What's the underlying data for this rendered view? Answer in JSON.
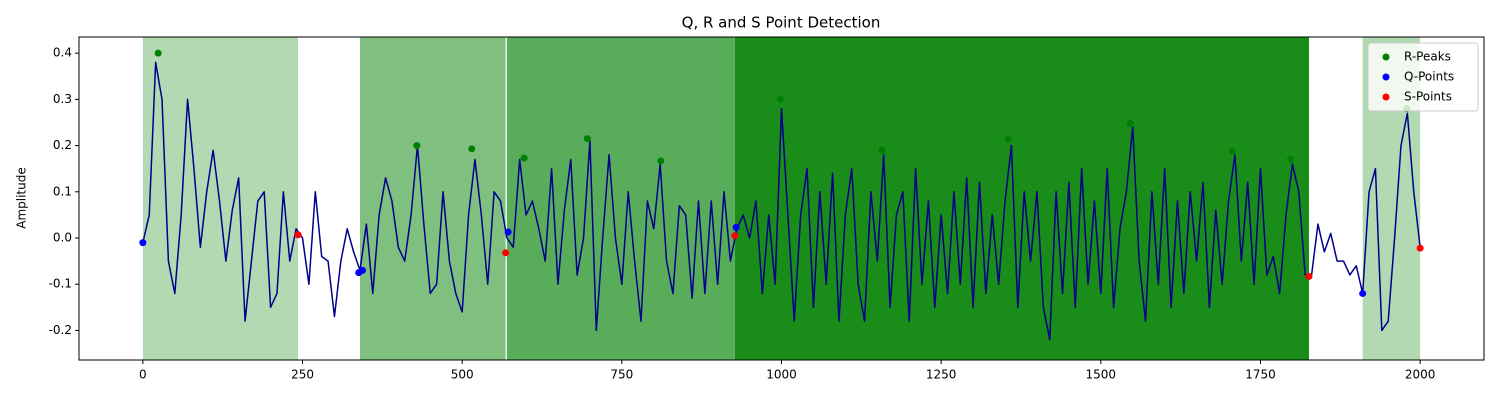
{
  "chart_data": {
    "type": "line",
    "title": "Q, R and S Point Detection",
    "y_label": "Amplitude",
    "xlim": [
      -100,
      2100
    ],
    "ylim": [
      -0.264,
      0.435
    ],
    "xticks": [
      0,
      250,
      500,
      750,
      1000,
      1250,
      1500,
      1750,
      2000
    ],
    "yticks": [
      -0.2,
      -0.1,
      {
        "value": 0,
        "label": "0.0"
      },
      0.1,
      0.2,
      0.3,
      0.4
    ],
    "grid": false,
    "legend": "upper right",
    "regions": [
      {
        "start": 0,
        "end": 243,
        "color": "green",
        "alpha": 0.3
      },
      {
        "start": 340,
        "end": 568,
        "color": "green",
        "alpha": 0.5
      },
      {
        "start": 570,
        "end": 927,
        "color": "green",
        "alpha": 0.65
      },
      {
        "start": 927,
        "end": 1826,
        "color": "green",
        "alpha": 0.9
      },
      {
        "start": 1910,
        "end": 2000,
        "color": "green",
        "alpha": 0.3
      }
    ],
    "series": [
      {
        "color": "#00008b",
        "x": [
          0,
          10,
          20,
          30,
          40,
          50,
          60,
          70,
          80,
          90,
          100,
          110,
          120,
          130,
          140,
          150,
          160,
          170,
          180,
          190,
          200,
          210,
          220,
          230,
          240,
          250,
          260,
          270,
          280,
          290,
          300,
          310,
          320,
          330,
          340,
          350,
          360,
          370,
          380,
          390,
          400,
          410,
          420,
          430,
          440,
          450,
          460,
          470,
          480,
          490,
          500,
          510,
          520,
          530,
          540,
          550,
          560,
          570,
          580,
          590,
          600,
          610,
          620,
          630,
          640,
          650,
          660,
          670,
          680,
          690,
          700,
          710,
          720,
          730,
          740,
          750,
          760,
          770,
          780,
          790,
          800,
          810,
          820,
          830,
          840,
          850,
          860,
          870,
          880,
          890,
          900,
          910,
          920,
          930,
          940,
          950,
          960,
          970,
          980,
          990,
          1000,
          1010,
          1020,
          1030,
          1040,
          1050,
          1060,
          1070,
          1080,
          1090,
          1100,
          1110,
          1120,
          1130,
          1140,
          1150,
          1160,
          1170,
          1180,
          1190,
          1200,
          1210,
          1220,
          1230,
          1240,
          1250,
          1260,
          1270,
          1280,
          1290,
          1300,
          1310,
          1320,
          1330,
          1340,
          1350,
          1360,
          1370,
          1380,
          1390,
          1400,
          1410,
          1420,
          1430,
          1440,
          1450,
          1460,
          1470,
          1480,
          1490,
          1500,
          1510,
          1520,
          1530,
          1540,
          1550,
          1560,
          1570,
          1580,
          1590,
          1600,
          1610,
          1620,
          1630,
          1640,
          1650,
          1660,
          1670,
          1680,
          1690,
          1700,
          1710,
          1720,
          1730,
          1740,
          1750,
          1760,
          1770,
          1780,
          1790,
          1800,
          1810,
          1820,
          1830,
          1840,
          1850,
          1860,
          1870,
          1880,
          1890,
          1900,
          1910,
          1920,
          1930,
          1940,
          1950,
          1960,
          1970,
          1980,
          1990,
          2000
        ],
        "values": [
          -0.01,
          0.05,
          0.38,
          0.3,
          -0.05,
          -0.12,
          0.05,
          0.3,
          0.15,
          -0.02,
          0.1,
          0.19,
          0.08,
          -0.05,
          0.06,
          0.13,
          -0.18,
          -0.05,
          0.08,
          0.1,
          -0.15,
          -0.12,
          0.1,
          -0.05,
          0.02,
          0.0,
          -0.1,
          0.1,
          -0.04,
          -0.05,
          -0.17,
          -0.05,
          0.02,
          -0.03,
          -0.07,
          0.03,
          -0.12,
          0.05,
          0.13,
          0.08,
          -0.02,
          -0.05,
          0.05,
          0.2,
          0.03,
          -0.12,
          -0.1,
          0.1,
          -0.05,
          -0.12,
          -0.16,
          0.05,
          0.17,
          0.05,
          -0.1,
          0.1,
          0.08,
          0.0,
          -0.02,
          0.17,
          0.05,
          0.08,
          0.02,
          -0.05,
          0.15,
          -0.1,
          0.06,
          0.17,
          -0.08,
          0.0,
          0.21,
          -0.2,
          0.0,
          0.18,
          0.0,
          -0.1,
          0.1,
          -0.05,
          -0.18,
          0.08,
          0.02,
          0.16,
          -0.05,
          -0.12,
          0.07,
          0.05,
          -0.13,
          0.08,
          -0.12,
          0.08,
          -0.1,
          0.1,
          -0.05,
          0.02,
          0.05,
          0.0,
          0.08,
          -0.12,
          0.05,
          -0.1,
          0.28,
          0.05,
          -0.18,
          0.05,
          0.15,
          -0.15,
          0.1,
          -0.1,
          0.14,
          -0.18,
          0.05,
          0.15,
          -0.1,
          -0.18,
          0.1,
          -0.05,
          0.18,
          -0.15,
          0.05,
          0.1,
          -0.18,
          0.15,
          -0.1,
          0.08,
          -0.15,
          0.05,
          -0.12,
          0.1,
          -0.1,
          0.13,
          -0.15,
          0.12,
          -0.12,
          0.05,
          -0.1,
          0.08,
          0.2,
          -0.15,
          0.1,
          -0.05,
          0.1,
          -0.15,
          -0.22,
          0.1,
          -0.12,
          0.12,
          -0.15,
          0.15,
          -0.1,
          0.08,
          -0.12,
          0.15,
          -0.15,
          0.02,
          0.1,
          0.24,
          -0.05,
          -0.18,
          0.1,
          -0.1,
          0.15,
          -0.15,
          0.08,
          -0.12,
          0.1,
          -0.05,
          0.12,
          -0.15,
          0.06,
          -0.1,
          0.08,
          0.18,
          -0.05,
          0.12,
          -0.1,
          0.15,
          -0.08,
          -0.04,
          -0.12,
          0.05,
          0.16,
          0.1,
          -0.08,
          -0.08,
          0.03,
          -0.03,
          0.01,
          -0.05,
          -0.05,
          -0.08,
          -0.06,
          -0.12,
          0.1,
          0.15,
          -0.2,
          -0.18,
          0.0,
          0.2,
          0.27,
          0.1,
          -0.02
        ]
      },
      {
        "name": "R-Peaks",
        "color": "green",
        "marker": true,
        "x": [
          24,
          429,
          515,
          597,
          696,
          811,
          998,
          1157,
          1355,
          1546,
          1706,
          1797,
          1979
        ],
        "values": [
          0.4,
          0.2,
          0.193,
          0.173,
          0.215,
          0.167,
          0.3,
          0.19,
          0.213,
          0.248,
          0.187,
          0.17,
          0.28
        ]
      },
      {
        "name": "Q-Points",
        "color": "blue",
        "marker": true,
        "x": [
          0,
          338,
          344,
          572,
          929,
          1910
        ],
        "values": [
          -0.01,
          -0.075,
          -0.07,
          0.013,
          0.023,
          -0.12
        ]
      },
      {
        "name": "S-Points",
        "color": "red",
        "marker": true,
        "x": [
          243,
          568,
          927,
          1826,
          2000
        ],
        "values": [
          0.007,
          -0.032,
          0.005,
          -0.083,
          -0.022
        ]
      }
    ]
  }
}
